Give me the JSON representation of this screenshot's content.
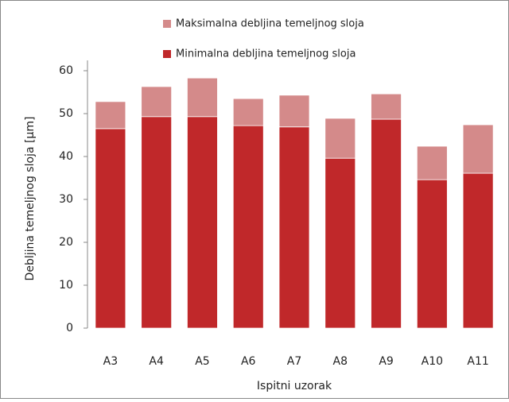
{
  "chart_data": {
    "type": "stacked_bar",
    "categories": [
      "A3",
      "A4",
      "A5",
      "A6",
      "A7",
      "A8",
      "A9",
      "A10",
      "A11"
    ],
    "series": [
      {
        "name": "Minimalna debljina temeljnog sloja",
        "color": "#c0282a",
        "values": [
          46.5,
          49.3,
          49.3,
          47.2,
          46.9,
          39.6,
          48.7,
          34.6,
          36.1
        ]
      },
      {
        "name": "Maksimalna debljina temeljnog sloja",
        "color": "#d48a8a",
        "values": [
          6.3,
          7.0,
          9.0,
          6.3,
          7.4,
          9.3,
          5.9,
          7.8,
          11.3
        ]
      }
    ],
    "ylim": [
      0,
      60
    ],
    "yticks": [
      0,
      10,
      20,
      30,
      40,
      50,
      60
    ],
    "ylabel": "Debljina temeljnog sloja [µm]",
    "xlabel": "Ispitni uzorak",
    "legend": "top"
  }
}
